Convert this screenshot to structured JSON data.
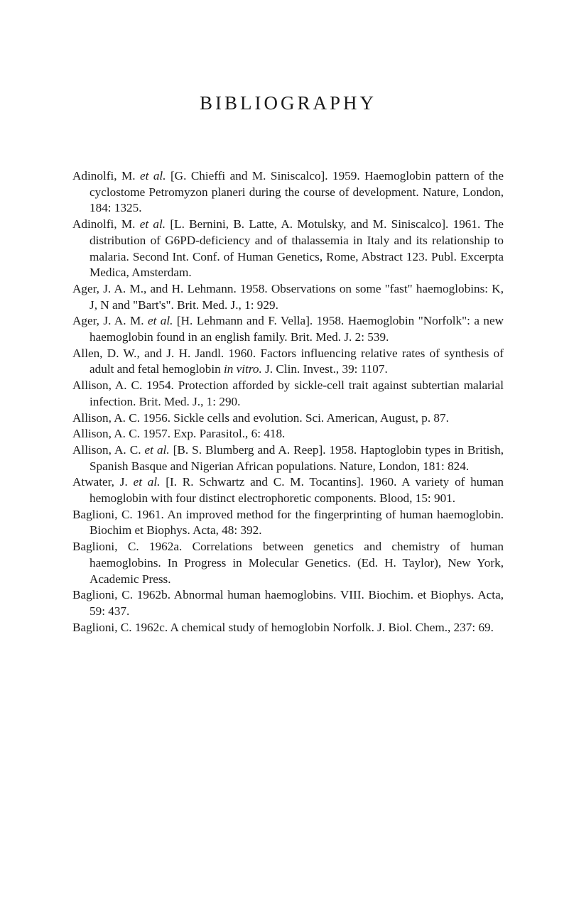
{
  "title": "BIBLIOGRAPHY",
  "entries": [
    {
      "segments": [
        {
          "t": "Adinolfi, M. "
        },
        {
          "t": "et al.",
          "i": true
        },
        {
          "t": " [G. Chieffi and M. Siniscalco]. 1959. Haemoglobin pattern of the cyclostome Petromyzon planeri during the course of development. Nature, London, 184: 1325."
        }
      ]
    },
    {
      "segments": [
        {
          "t": "Adinolfi, M. "
        },
        {
          "t": "et al.",
          "i": true
        },
        {
          "t": " [L. Bernini, B. Latte, A. Motulsky, and M. Siniscalco]. 1961. The distribution of G6PD-deficiency and of thalassemia in Italy and its relationship to malaria. Second Int. Conf. of Human Genetics, Rome, Abstract 123. Publ. Excerpta Medica, Amsterdam."
        }
      ]
    },
    {
      "segments": [
        {
          "t": "Ager, J. A. M., and H. Lehmann. 1958. Observations on some \"fast\" haemoglobins: K, J, N and \"Bart's\". Brit. Med. J., 1: 929."
        }
      ]
    },
    {
      "segments": [
        {
          "t": "Ager, J. A. M. "
        },
        {
          "t": "et al.",
          "i": true
        },
        {
          "t": " [H. Lehmann and F. Vella]. 1958. Haemoglobin \"Norfolk\": a new haemoglobin found in an english family. Brit. Med. J. 2: 539."
        }
      ]
    },
    {
      "segments": [
        {
          "t": "Allen, D. W., and J. H. Jandl. 1960. Factors influencing relative rates of synthesis of adult and fetal hemoglobin "
        },
        {
          "t": "in vitro.",
          "i": true
        },
        {
          "t": " J. Clin. Invest., 39: 1107."
        }
      ]
    },
    {
      "segments": [
        {
          "t": "Allison, A. C. 1954. Protection afforded by sickle-cell trait against subtertian malarial infection. Brit. Med. J., 1: 290."
        }
      ]
    },
    {
      "segments": [
        {
          "t": "Allison, A. C. 1956. Sickle cells and evolution. Sci. American, August, p. 87."
        }
      ]
    },
    {
      "segments": [
        {
          "t": "Allison, A. C. 1957. Exp. Parasitol., 6: 418."
        }
      ]
    },
    {
      "segments": [
        {
          "t": "Allison, A. C. "
        },
        {
          "t": "et al.",
          "i": true
        },
        {
          "t": " [B. S. Blumberg and A. Reep]. 1958. Haptoglobin types in British, Spanish Basque and Nigerian African populations. Nature, London, 181: 824."
        }
      ]
    },
    {
      "segments": [
        {
          "t": "Atwater, J. "
        },
        {
          "t": "et al.",
          "i": true
        },
        {
          "t": " [I. R. Schwartz and C. M. Tocantins]. 1960. A variety of human hemoglobin with four distinct electrophoretic components. Blood, 15: 901."
        }
      ]
    },
    {
      "segments": [
        {
          "t": "Baglioni, C. 1961. An improved method for the fingerprinting of human haemoglobin. Biochim et Biophys. Acta, 48: 392."
        }
      ]
    },
    {
      "segments": [
        {
          "t": "Baglioni, C. 1962a. Correlations between genetics and chemistry of human haemoglobins. In Progress in Molecular Genetics. (Ed. H. Taylor), New York, Academic Press."
        }
      ]
    },
    {
      "segments": [
        {
          "t": "Baglioni, C. 1962b. Abnormal human haemoglobins. VIII. Biochim. et Biophys. Acta, 59: 437."
        }
      ]
    },
    {
      "segments": [
        {
          "t": "Baglioni, C. 1962c. A chemical study of hemoglobin Norfolk. J. Biol. Chem., 237: 69."
        }
      ]
    }
  ]
}
